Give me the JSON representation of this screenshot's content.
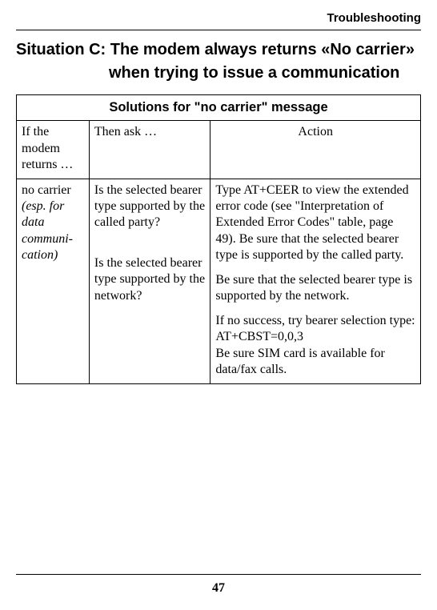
{
  "running_head": "Troubleshooting",
  "situation_prefix": "Situation C:",
  "situation_rest": "The modem always returns «No carrier» when trying to issue a communication",
  "table": {
    "caption": "Solutions for \"no carrier\" message",
    "header": {
      "col_a": "If the modem returns …",
      "col_b": "Then ask …",
      "col_c": "Action"
    },
    "row": {
      "col_a_line1": "no carrier",
      "col_a_line2": "(esp. for data communi-cation)",
      "col_b_p1": "Is the selected bearer type supported by the called party?",
      "col_b_p2": "Is the selected bearer type supported by the network?",
      "col_c_p1": "Type AT+CEER to view the extended error code (see \"Interpretation of Extended Error Codes\" table, page 49). Be sure that the selected bearer type is supported by the called party.",
      "col_c_p2": "Be sure that the selected bearer type is supported by the network.",
      "col_c_p3_a": "If no success, try bearer selection type:",
      "col_c_p3_b": "AT+CBST=0,0,3",
      "col_c_p3_c": "Be sure SIM card is available for data/fax calls."
    }
  },
  "page_number": "47"
}
